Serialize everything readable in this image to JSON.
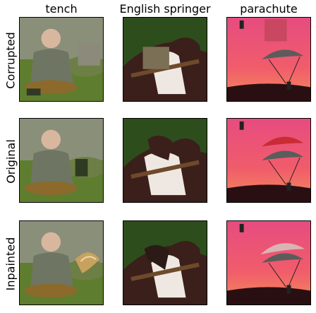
{
  "columns": [
    "tench",
    "English springer",
    "parachute"
  ],
  "rows": [
    "Corrupted",
    "Original",
    "Inpainted"
  ],
  "palette": {
    "grass": "#5f7d2f",
    "water": "#8a8f7a",
    "shirt": "#6e7663",
    "fish": "#8b6a2c",
    "dog_dark": "#3b1f1b",
    "dog_white": "#efe8e2",
    "dog_bg": "#2d4d1c",
    "sky_pink": "#e64c80",
    "sky_orange": "#f28b5a",
    "chute_red": "#c92c35",
    "patch_gray": "#8c8a7b",
    "patch_dog": "#7b7056",
    "patch_red": "#c74860"
  }
}
